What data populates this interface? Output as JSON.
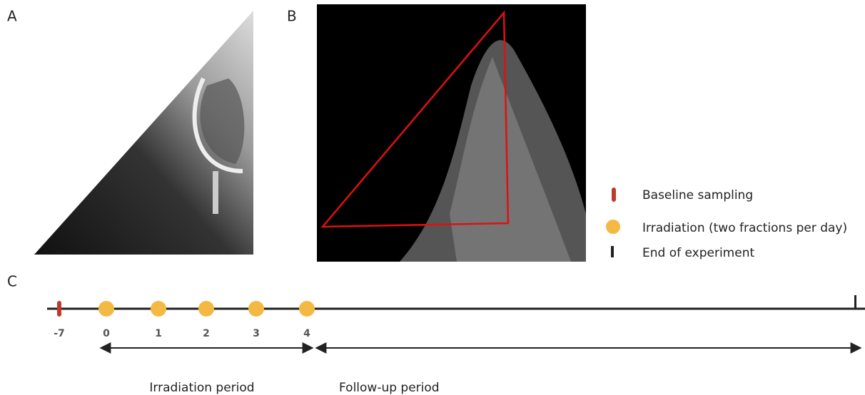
{
  "panels": {
    "a": "A",
    "b": "B",
    "c": "C"
  },
  "legend": {
    "items": [
      {
        "label": "Baseline sampling"
      },
      {
        "label": "Irradiation (two fractions per day)"
      },
      {
        "label": "End of experiment"
      }
    ]
  },
  "timeline": {
    "ticks": [
      "-7",
      "0",
      "1",
      "2",
      "3",
      "4"
    ]
  },
  "periods": [
    {
      "label": "Irradiation period"
    },
    {
      "label": "Follow-up period"
    }
  ]
}
